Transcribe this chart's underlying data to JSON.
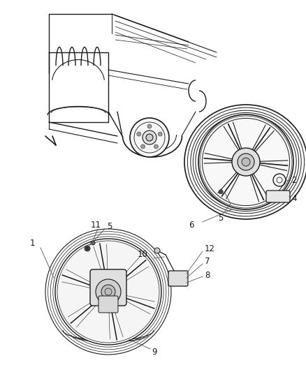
{
  "background_color": "#ffffff",
  "line_color": "#1a1a1a",
  "label_color": "#1a1a1a",
  "figsize": [
    4.38,
    5.33
  ],
  "dpi": 100,
  "label_fontsize": 8.5,
  "label_font": "DejaVu Sans"
}
